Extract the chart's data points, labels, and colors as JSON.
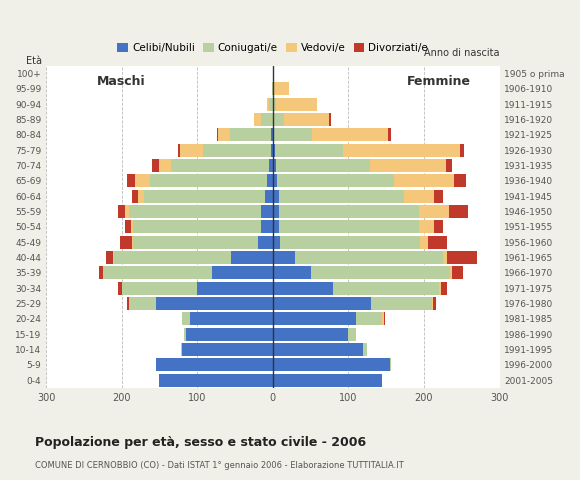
{
  "age_groups": [
    "0-4",
    "5-9",
    "10-14",
    "15-19",
    "20-24",
    "25-29",
    "30-34",
    "35-39",
    "40-44",
    "45-49",
    "50-54",
    "55-59",
    "60-64",
    "65-69",
    "70-74",
    "75-79",
    "80-84",
    "85-89",
    "90-94",
    "95-99",
    "100+"
  ],
  "birth_years": [
    "2001-2005",
    "1996-2000",
    "1991-1995",
    "1986-1990",
    "1981-1985",
    "1976-1980",
    "1971-1975",
    "1966-1970",
    "1961-1965",
    "1956-1960",
    "1951-1955",
    "1946-1950",
    "1941-1945",
    "1936-1940",
    "1931-1935",
    "1926-1930",
    "1921-1925",
    "1916-1920",
    "1911-1915",
    "1906-1910",
    "1905 o prima"
  ],
  "males": {
    "celibe": [
      150,
      155,
      120,
      115,
      110,
      155,
      100,
      80,
      55,
      20,
      15,
      15,
      10,
      8,
      5,
      3,
      2,
      0,
      0,
      0,
      0
    ],
    "coniugato": [
      0,
      0,
      1,
      2,
      10,
      35,
      100,
      145,
      155,
      165,
      170,
      175,
      160,
      155,
      130,
      90,
      55,
      15,
      5,
      1,
      0
    ],
    "vedovo": [
      0,
      0,
      0,
      0,
      0,
      0,
      0,
      0,
      1,
      2,
      3,
      5,
      8,
      20,
      15,
      30,
      15,
      10,
      3,
      0,
      0
    ],
    "divorziato": [
      0,
      0,
      0,
      0,
      0,
      3,
      5,
      5,
      10,
      15,
      8,
      10,
      8,
      10,
      10,
      2,
      2,
      0,
      0,
      0,
      0
    ]
  },
  "females": {
    "celibe": [
      145,
      155,
      120,
      100,
      110,
      130,
      80,
      50,
      30,
      10,
      8,
      8,
      8,
      5,
      4,
      3,
      2,
      0,
      0,
      0,
      0
    ],
    "coniugato": [
      0,
      2,
      5,
      10,
      35,
      80,
      140,
      185,
      195,
      185,
      185,
      185,
      165,
      155,
      125,
      90,
      50,
      15,
      4,
      1,
      0
    ],
    "vedovo": [
      0,
      0,
      0,
      0,
      2,
      2,
      2,
      2,
      5,
      10,
      20,
      40,
      40,
      80,
      100,
      155,
      100,
      60,
      55,
      20,
      0
    ],
    "divorziato": [
      0,
      0,
      0,
      0,
      2,
      4,
      8,
      15,
      40,
      25,
      12,
      25,
      12,
      15,
      8,
      5,
      5,
      2,
      0,
      0,
      0
    ]
  },
  "colors": {
    "celibe": "#4472c4",
    "coniugato": "#b8cfa0",
    "vedovo": "#f5c77a",
    "divorziato": "#c0392b"
  },
  "legend_labels": [
    "Celibi/Nubili",
    "Coniugati/e",
    "Vedovi/e",
    "Divorziati/e"
  ],
  "title": "Popolazione per età, sesso e stato civile - 2006",
  "subtitle": "COMUNE DI CERNOBBIO (CO) - Dati ISTAT 1° gennaio 2006 - Elaborazione TUTTITALIA.IT",
  "xlabel_left": "Maschi",
  "xlabel_right": "Femmine",
  "ylabel_left": "Età",
  "ylabel_right": "Anno di nascita",
  "xlim": 300,
  "background_color": "#f0f0e8",
  "plot_bg_color": "#ffffff"
}
